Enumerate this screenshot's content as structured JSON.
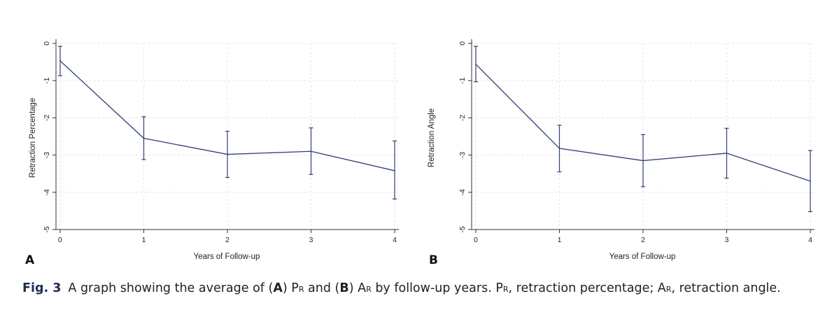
{
  "chart_data": [
    {
      "type": "line",
      "panel": "A",
      "ylabel": "Retraction Percentage",
      "xlabel": "Years of Follow-up",
      "x": [
        0,
        1,
        2,
        3,
        4
      ],
      "values": [
        -0.47,
        -2.55,
        -2.98,
        -2.9,
        -3.42
      ],
      "error_low": [
        -0.87,
        -3.12,
        -3.6,
        -3.52,
        -4.18
      ],
      "error_high": [
        -0.08,
        -1.97,
        -2.36,
        -2.27,
        -2.62
      ],
      "xticks": [
        "0",
        "1",
        "2",
        "3",
        "4"
      ],
      "yticks": [
        "0",
        "-1",
        "-2",
        "-3",
        "-4",
        "-5"
      ],
      "xlim": [
        -0.05,
        4.05
      ],
      "ylim": [
        -5,
        0
      ],
      "grid": true,
      "line_color": "#2f3e7a"
    },
    {
      "type": "line",
      "panel": "B",
      "ylabel": "Retraction Angle",
      "xlabel": "Years of Follow-up",
      "x": [
        0,
        1,
        2,
        3,
        4
      ],
      "values": [
        -0.56,
        -2.82,
        -3.15,
        -2.95,
        -3.7
      ],
      "error_low": [
        -1.03,
        -3.45,
        -3.85,
        -3.62,
        -4.52
      ],
      "error_high": [
        -0.08,
        -2.2,
        -2.45,
        -2.28,
        -2.88
      ],
      "xticks": [
        "0",
        "1",
        "2",
        "3",
        "4"
      ],
      "yticks": [
        "0",
        "-1",
        "-2",
        "-3",
        "-4",
        "-5"
      ],
      "xlim": [
        -0.05,
        4.05
      ],
      "ylim": [
        -5,
        0
      ],
      "grid": true,
      "line_color": "#2f3e7a"
    }
  ],
  "panels": {
    "a_letter": "A",
    "b_letter": "B"
  },
  "caption": {
    "fig_label": "Fig. 3",
    "t1": "A graph showing the average of (",
    "t2": "A",
    "t3": ") P",
    "t4": "R",
    "t5": " and (",
    "t6": "B",
    "t7": ") A",
    "t8": "R",
    "t9": " by follow-up years. P",
    "t10": "R",
    "t11": ", retraction percentage; A",
    "t12": "R",
    "t13": ", retraction angle."
  }
}
